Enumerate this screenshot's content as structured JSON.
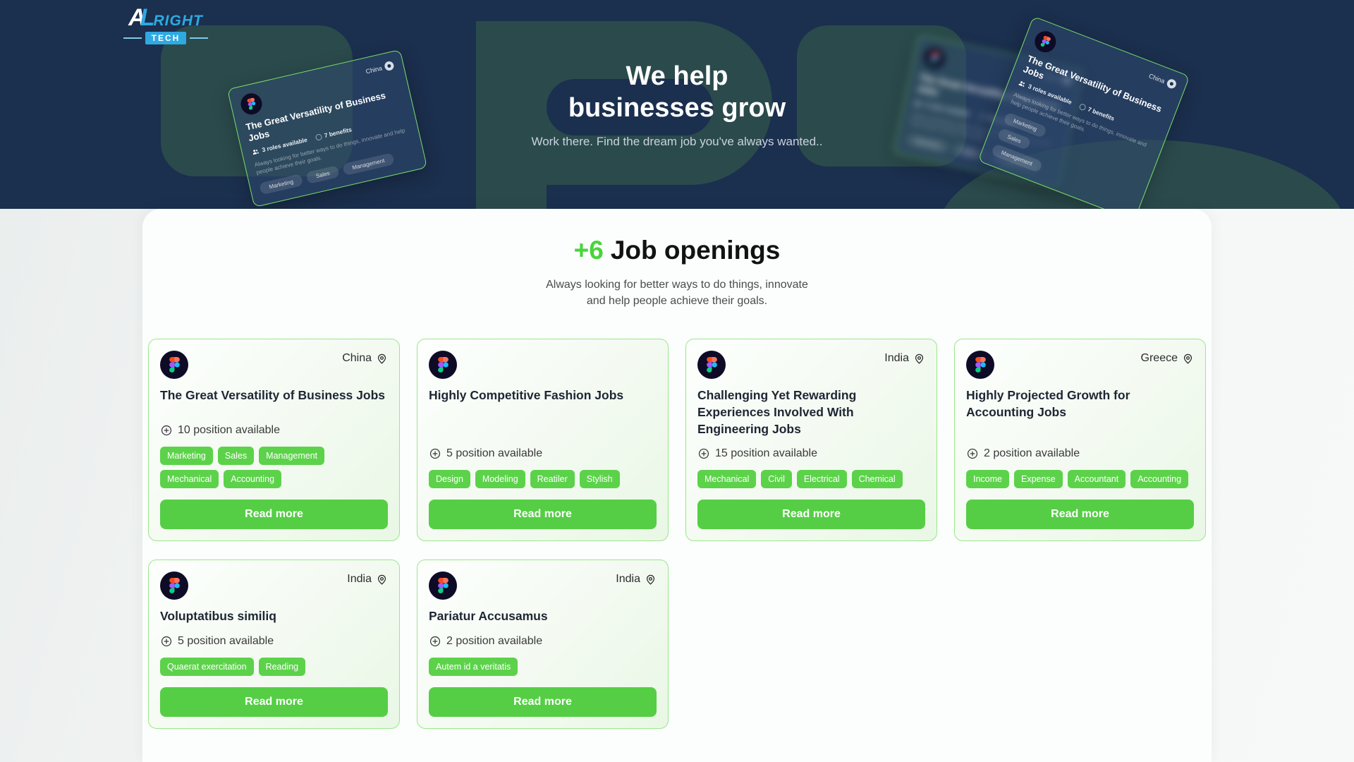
{
  "logo": {
    "part1": "A",
    "part2": "L",
    "part3": "RIGHT",
    "badge": "TECH"
  },
  "hero": {
    "title_line1": "We help",
    "title_line2": "businesses grow",
    "subtitle": "Work there. Find the dream job you've always wanted..",
    "card": {
      "title": "The Great Versatility of Business Jobs",
      "country": "China",
      "roles": "3 roles available",
      "benefits": "7 benefits",
      "description": "Always looking for better ways to do things, innovate and help people achieve their goals.",
      "tags": [
        "Marketing",
        "Sales",
        "Management"
      ]
    }
  },
  "jobs": {
    "heading_highlight": "+6",
    "heading_rest": "Job openings",
    "subheading_line1": "Always looking for better ways to do things, innovate",
    "subheading_line2": "and help people achieve their goals.",
    "read_more_label": "Read more",
    "cards": [
      {
        "country": "China",
        "title": "The Great Versatility of Business Jobs",
        "positions": "10 position available",
        "tags": [
          "Marketing",
          "Sales",
          "Management",
          "Mechanical",
          "Accounting"
        ]
      },
      {
        "country": "",
        "title": "Highly Competitive Fashion Jobs",
        "positions": "5 position available",
        "tags": [
          "Design",
          "Modeling",
          "Reatiler",
          "Stylish"
        ]
      },
      {
        "country": "India",
        "title": "Challenging Yet Rewarding Experiences Involved With Engineering Jobs",
        "positions": "15 position available",
        "tags": [
          "Mechanical",
          "Civil",
          "Electrical",
          "Chemical"
        ]
      },
      {
        "country": "Greece",
        "title": "Highly Projected Growth for Accounting Jobs",
        "positions": "2 position available",
        "tags": [
          "Income",
          "Expense",
          "Accountant",
          "Accounting"
        ]
      },
      {
        "country": "India",
        "title": "Voluptatibus similiq",
        "positions": "5 position available",
        "tags": [
          "Quaerat exercitation",
          "Reading"
        ]
      },
      {
        "country": "India",
        "title": "Pariatur Accusamus",
        "positions": "2 position available",
        "tags": [
          "Autem id a veritatis"
        ]
      }
    ]
  },
  "colors": {
    "accent_green": "#55ce45",
    "logo_blue": "#2fa9e1",
    "hero_navy": "#1b2f4e",
    "deco_teal": "#2b4a4c",
    "card_border_green": "#99e888"
  }
}
